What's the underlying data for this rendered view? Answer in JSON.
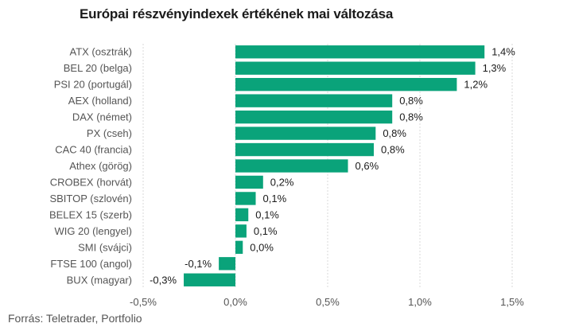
{
  "title": "Európai részvényindexek értékének mai változása",
  "source": "Forrás: Teletrader, Portfolio",
  "colors": {
    "bar": "#0aa37a",
    "grid": "#d9d9d9",
    "axis": "#555555"
  },
  "chart_data": {
    "type": "bar",
    "orientation": "horizontal",
    "title": "Európai részvényindexek értékének mai változása",
    "categories": [
      "ATX (osztrák)",
      "BEL 20 (belga)",
      "PSI 20 (portugál)",
      "AEX (holland)",
      "DAX (német)",
      "PX (cseh)",
      "CAC 40 (francia)",
      "Athex (görög)",
      "CROBEX (horvát)",
      "SBITOP (szlovén)",
      "BELEX 15 (szerb)",
      "WIG 20 (lengyel)",
      "SMI (svájci)",
      "FTSE 100 (angol)",
      "BUX (magyar)"
    ],
    "values": [
      1.35,
      1.3,
      1.2,
      0.85,
      0.85,
      0.76,
      0.75,
      0.61,
      0.15,
      0.11,
      0.07,
      0.06,
      0.04,
      -0.09,
      -0.28
    ],
    "value_labels": [
      "1,4%",
      "1,3%",
      "1,2%",
      "0,8%",
      "0,8%",
      "0,8%",
      "0,8%",
      "0,6%",
      "0,2%",
      "0,1%",
      "0,1%",
      "0,1%",
      "0,0%",
      "-0,1%",
      "-0,3%"
    ],
    "xlim": [
      -0.5,
      1.5
    ],
    "ticks": [
      -0.5,
      0,
      0.5,
      1.0,
      1.5
    ],
    "tick_labels": [
      "-0,5%",
      "0,0%",
      "0,5%",
      "1,0%",
      "1,5%"
    ],
    "grid": true
  }
}
